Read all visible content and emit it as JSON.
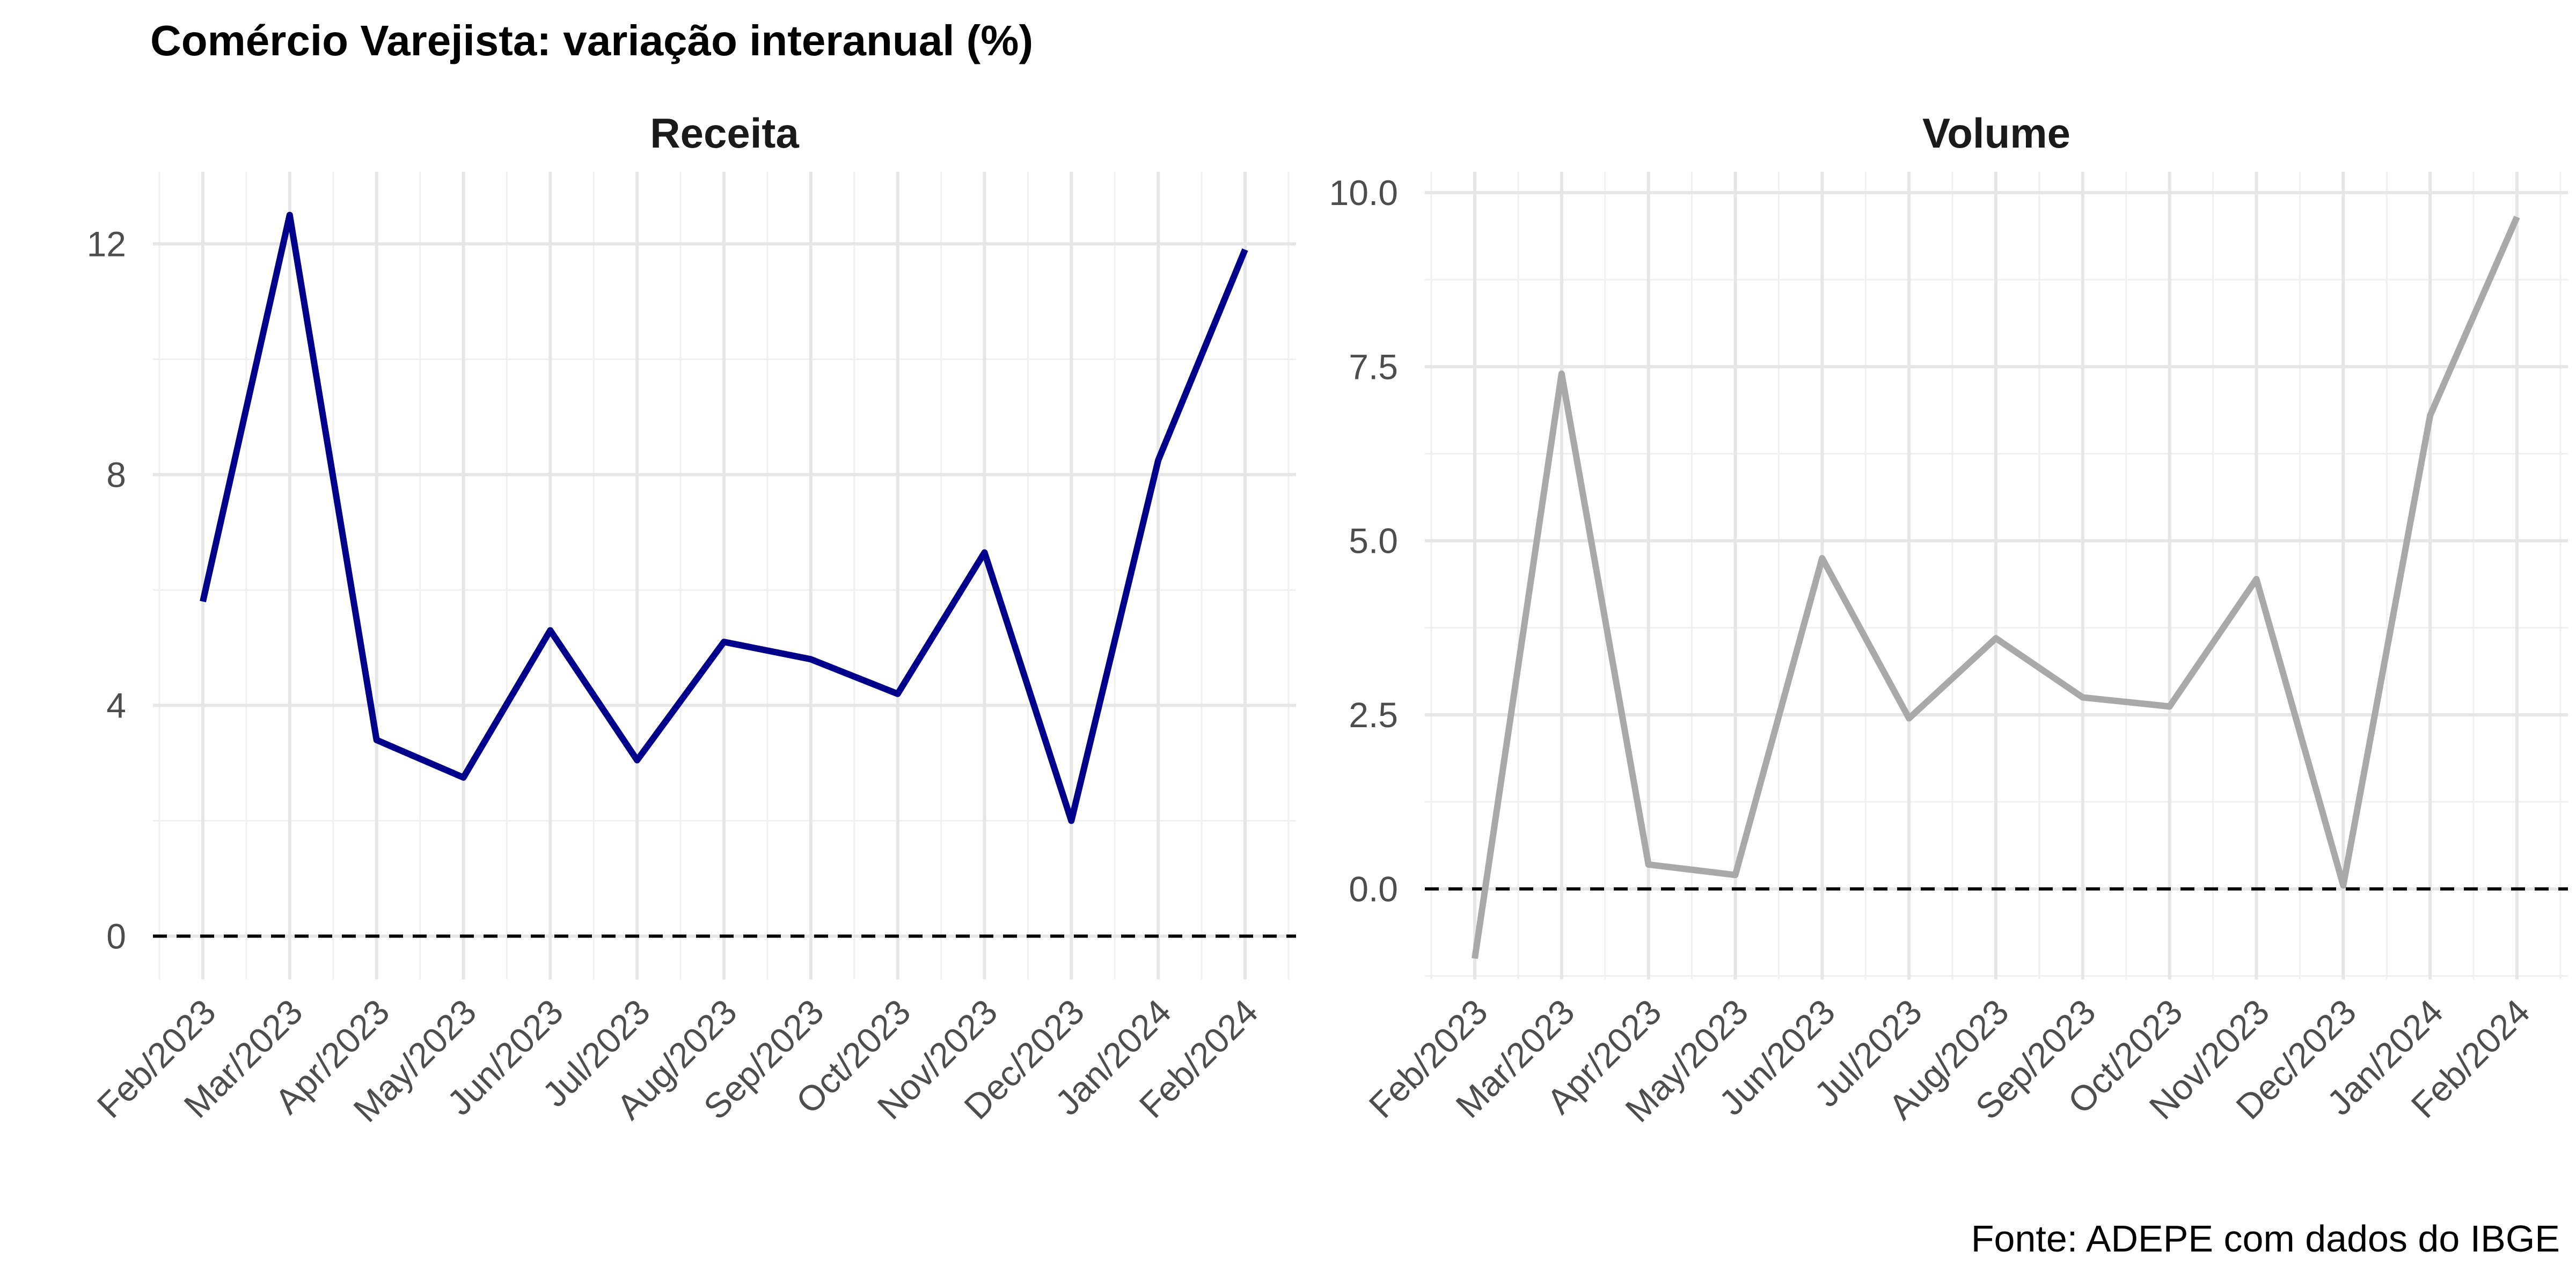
{
  "title": "Comércio Varejista: variação interanual (%)",
  "caption": "Fonte: ADEPE com dados do IBGE",
  "chart_data": [
    {
      "type": "line",
      "facet": "Receita",
      "color": "#00008B",
      "categories": [
        "Feb/2023",
        "Mar/2023",
        "Apr/2023",
        "May/2023",
        "Jun/2023",
        "Jul/2023",
        "Aug/2023",
        "Sep/2023",
        "Oct/2023",
        "Nov/2023",
        "Dec/2023",
        "Jan/2024",
        "Feb/2024"
      ],
      "values": [
        5.8,
        12.5,
        3.4,
        2.75,
        5.3,
        3.05,
        5.1,
        4.8,
        4.2,
        6.65,
        2.0,
        8.25,
        11.9
      ],
      "yticks": [
        "0",
        "4",
        "8",
        "12"
      ],
      "ytick_values": [
        0,
        4,
        8,
        12
      ],
      "ylim": [
        -0.75,
        13.25
      ],
      "reference_line": 0,
      "grid": true
    },
    {
      "type": "line",
      "facet": "Volume",
      "color": "#A9A9A9",
      "categories": [
        "Feb/2023",
        "Mar/2023",
        "Apr/2023",
        "May/2023",
        "Jun/2023",
        "Jul/2023",
        "Aug/2023",
        "Sep/2023",
        "Oct/2023",
        "Nov/2023",
        "Dec/2023",
        "Jan/2024",
        "Feb/2024"
      ],
      "values": [
        -1.0,
        7.4,
        0.35,
        0.2,
        4.75,
        2.45,
        3.6,
        2.75,
        2.62,
        4.45,
        0.05,
        6.8,
        9.65
      ],
      "yticks": [
        "0.0",
        "2.5",
        "5.0",
        "7.5",
        "10.0"
      ],
      "ytick_values": [
        0,
        2.5,
        5,
        7.5,
        10
      ],
      "ylim": [
        -1.3,
        10.3
      ],
      "reference_line": 0,
      "grid": true
    }
  ]
}
